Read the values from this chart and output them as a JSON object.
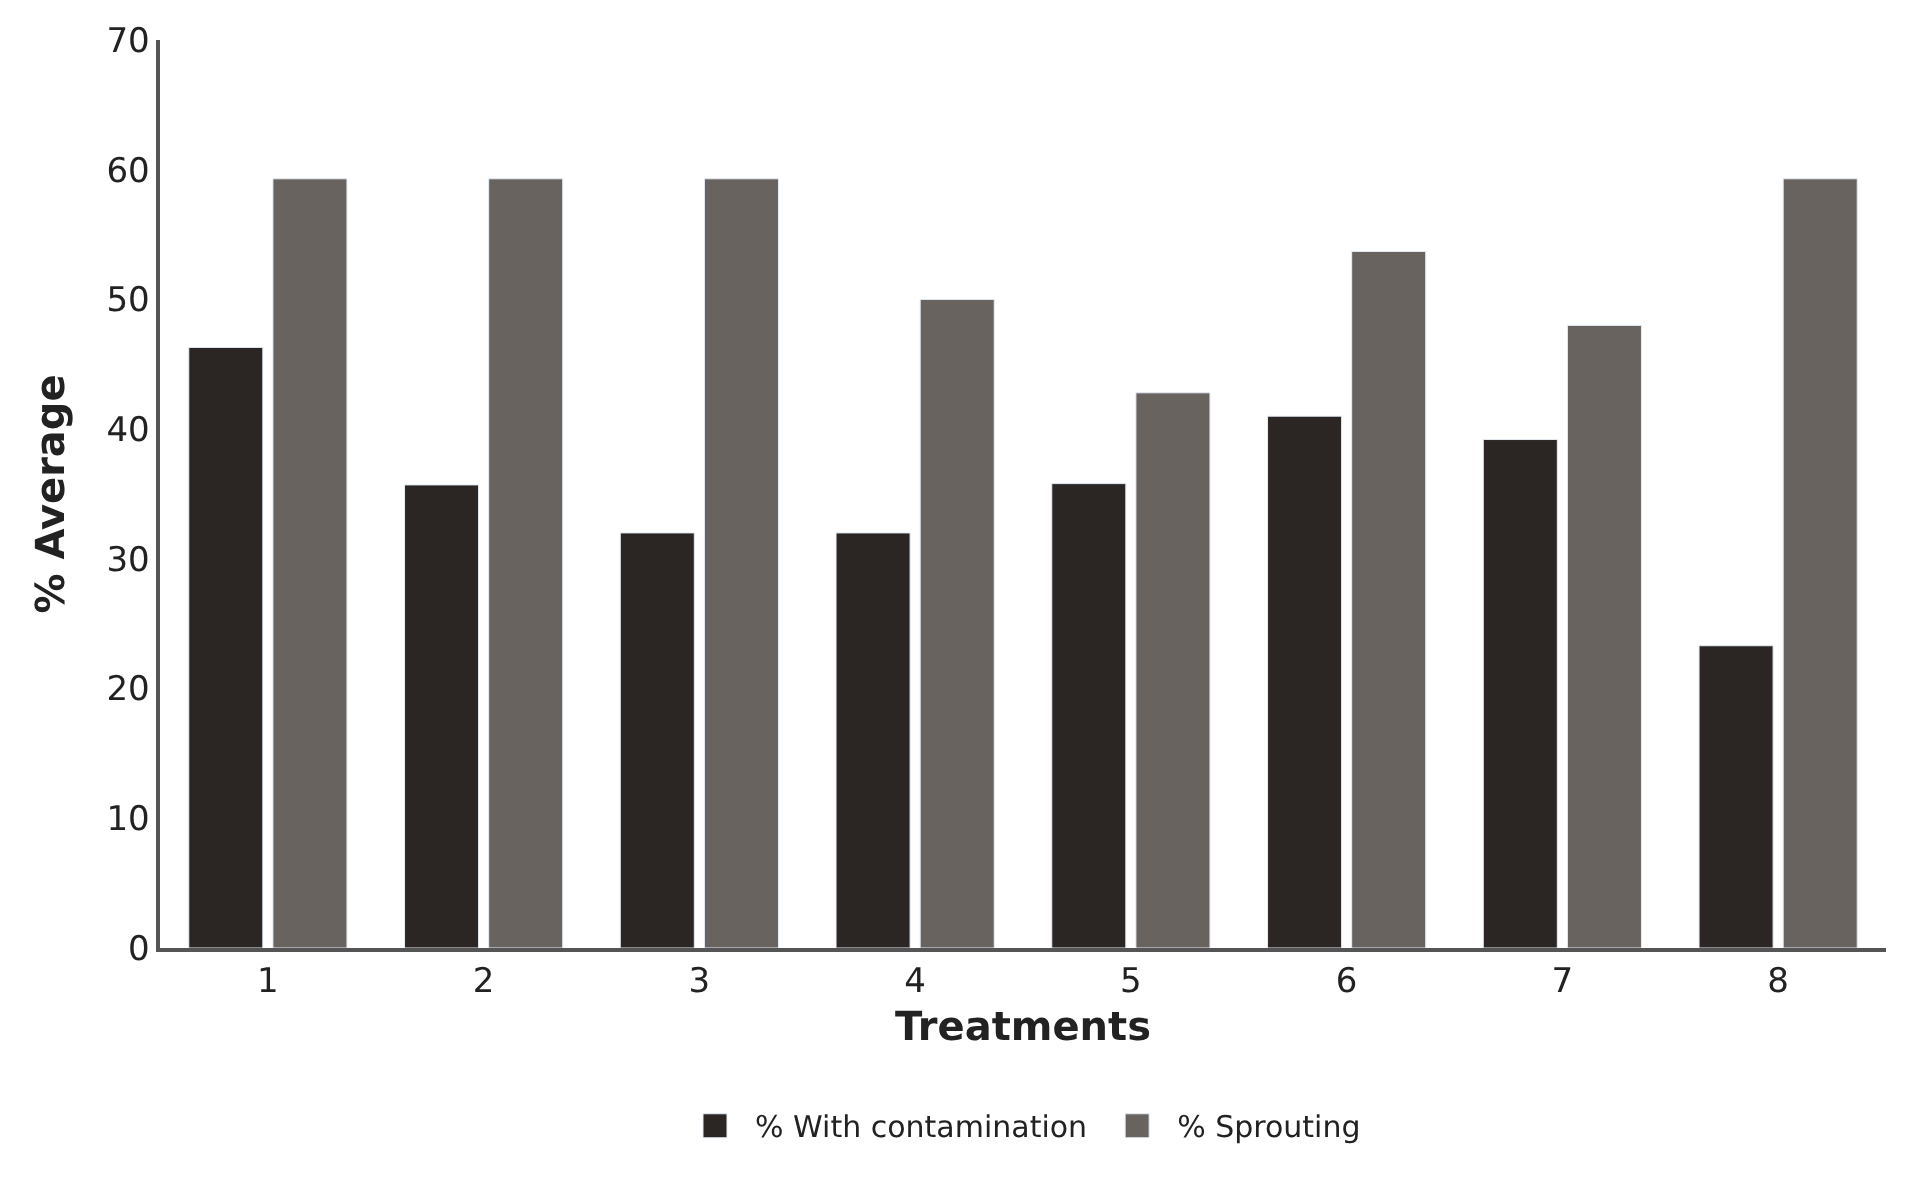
{
  "chart_data": {
    "type": "bar",
    "xlabel": "Treatments",
    "ylabel": "% Average",
    "categories": [
      "1",
      "2",
      "3",
      "4",
      "5",
      "6",
      "7",
      "8"
    ],
    "series": [
      {
        "name": "% With contamination",
        "color": "#2b2624",
        "values": [
          46.3,
          35.7,
          32,
          32,
          35.8,
          41,
          39.2,
          23.3
        ]
      },
      {
        "name": "% Sprouting",
        "color": "#69635f",
        "values": [
          59.3,
          59.3,
          59.3,
          50,
          42.8,
          53.7,
          48,
          59.3
        ]
      }
    ],
    "ylim": [
      0,
      70
    ],
    "yticks": [
      0,
      10,
      20,
      30,
      40,
      50,
      60,
      70
    ],
    "grid": false,
    "legend": "bottom"
  }
}
